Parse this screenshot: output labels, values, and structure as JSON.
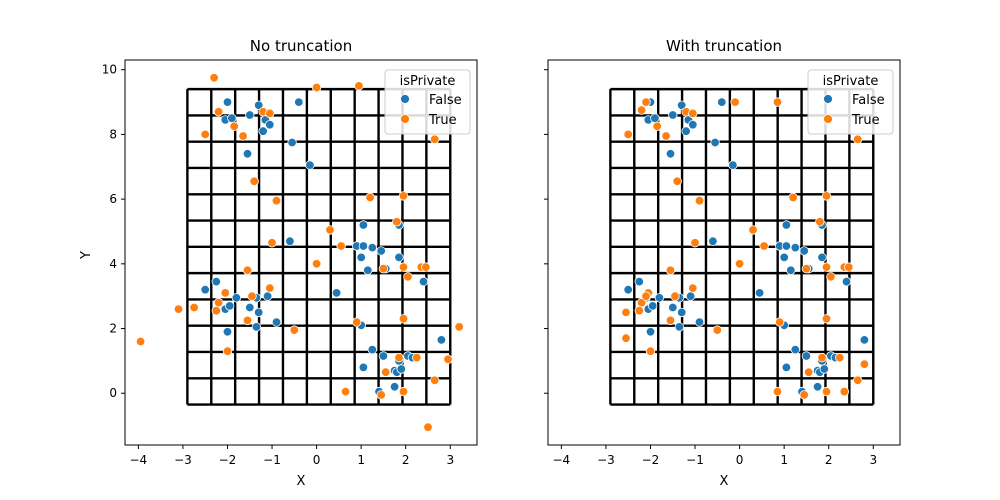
{
  "colors": {
    "false": "#1f77b4",
    "true": "#ff7f0e"
  },
  "chart_data": [
    {
      "type": "scatter",
      "title": "No truncation",
      "xlabel": "X",
      "ylabel": "Y",
      "xlim": [
        -4.3,
        3.6
      ],
      "ylim": [
        -1.6,
        10.3
      ],
      "xticks": [
        -4,
        -3,
        -2,
        -1,
        0,
        1,
        2,
        3
      ],
      "yticks": [
        0,
        2,
        4,
        6,
        8,
        10
      ],
      "show_y_tick_labels": true,
      "legend": {
        "title": "isPrivate",
        "placement": "upper-right",
        "entries": [
          "False",
          "True"
        ]
      },
      "grid_overlay": {
        "x_edges": [
          -2.9,
          3.0
        ],
        "y_edges": [
          -0.35,
          9.4
        ],
        "cols": 11,
        "rows": 12
      },
      "series": [
        {
          "name": "False",
          "points": [
            [
              -2.0,
              9.0
            ],
            [
              -1.3,
              8.9
            ],
            [
              -0.4,
              9.0
            ],
            [
              -2.05,
              8.45
            ],
            [
              -1.9,
              8.5
            ],
            [
              -1.5,
              8.6
            ],
            [
              -1.15,
              8.45
            ],
            [
              -1.05,
              8.3
            ],
            [
              -1.2,
              8.1
            ],
            [
              -0.55,
              7.75
            ],
            [
              -1.55,
              7.4
            ],
            [
              -0.15,
              7.05
            ],
            [
              -0.6,
              4.7
            ],
            [
              1.05,
              5.2
            ],
            [
              1.85,
              5.2
            ],
            [
              0.9,
              4.55
            ],
            [
              1.05,
              4.55
            ],
            [
              1.25,
              4.5
            ],
            [
              1.45,
              4.4
            ],
            [
              1.0,
              4.2
            ],
            [
              1.85,
              4.2
            ],
            [
              1.15,
              3.8
            ],
            [
              1.55,
              3.85
            ],
            [
              2.4,
              3.45
            ],
            [
              0.45,
              3.1
            ],
            [
              -2.25,
              3.45
            ],
            [
              -2.5,
              3.2
            ],
            [
              -1.8,
              2.95
            ],
            [
              -1.1,
              3.0
            ],
            [
              -1.35,
              2.95
            ],
            [
              -2.05,
              2.6
            ],
            [
              -1.95,
              2.7
            ],
            [
              -1.5,
              2.65
            ],
            [
              -1.3,
              2.5
            ],
            [
              -1.35,
              2.05
            ],
            [
              -0.9,
              2.2
            ],
            [
              -2.0,
              1.9
            ],
            [
              1.0,
              2.1
            ],
            [
              2.8,
              1.65
            ],
            [
              1.25,
              1.35
            ],
            [
              1.5,
              1.15
            ],
            [
              1.85,
              1.0
            ],
            [
              2.05,
              1.15
            ],
            [
              2.15,
              1.1
            ],
            [
              1.05,
              0.8
            ],
            [
              1.75,
              0.7
            ],
            [
              1.8,
              0.65
            ],
            [
              1.9,
              0.75
            ],
            [
              1.75,
              0.2
            ],
            [
              1.4,
              0.05
            ]
          ]
        },
        {
          "name": "True",
          "points": [
            [
              -2.3,
              9.75
            ],
            [
              0.0,
              9.45
            ],
            [
              0.95,
              9.5
            ],
            [
              -2.2,
              8.7
            ],
            [
              -1.2,
              8.7
            ],
            [
              -1.05,
              8.65
            ],
            [
              -1.85,
              8.25
            ],
            [
              -1.65,
              7.95
            ],
            [
              -2.5,
              8.0
            ],
            [
              2.65,
              7.85
            ],
            [
              -1.4,
              6.55
            ],
            [
              1.2,
              6.05
            ],
            [
              1.95,
              6.1
            ],
            [
              -0.9,
              5.95
            ],
            [
              1.8,
              5.3
            ],
            [
              0.3,
              5.05
            ],
            [
              0.55,
              4.55
            ],
            [
              -1.0,
              4.65
            ],
            [
              0.0,
              4.0
            ],
            [
              1.95,
              3.9
            ],
            [
              2.35,
              3.9
            ],
            [
              2.45,
              3.9
            ],
            [
              1.5,
              3.85
            ],
            [
              -1.55,
              3.8
            ],
            [
              2.05,
              3.6
            ],
            [
              -1.05,
              3.25
            ],
            [
              -2.05,
              3.1
            ],
            [
              -2.2,
              2.8
            ],
            [
              -1.45,
              3.0
            ],
            [
              -2.25,
              2.55
            ],
            [
              -2.75,
              2.65
            ],
            [
              -3.1,
              2.6
            ],
            [
              -1.55,
              2.25
            ],
            [
              -0.5,
              1.95
            ],
            [
              0.9,
              2.2
            ],
            [
              1.95,
              2.3
            ],
            [
              3.2,
              2.05
            ],
            [
              -3.95,
              1.6
            ],
            [
              -2.0,
              1.3
            ],
            [
              1.85,
              1.1
            ],
            [
              2.25,
              1.1
            ],
            [
              2.95,
              1.05
            ],
            [
              1.55,
              0.65
            ],
            [
              2.65,
              0.4
            ],
            [
              0.65,
              0.05
            ],
            [
              1.45,
              -0.05
            ],
            [
              1.95,
              0.05
            ],
            [
              2.5,
              -1.05
            ]
          ]
        }
      ]
    },
    {
      "type": "scatter",
      "title": "With truncation",
      "xlabel": "X",
      "ylabel": "",
      "xlim": [
        -4.3,
        3.6
      ],
      "ylim": [
        -1.6,
        10.3
      ],
      "xticks": [
        -4,
        -3,
        -2,
        -1,
        0,
        1,
        2,
        3
      ],
      "yticks": [
        0,
        2,
        4,
        6,
        8,
        10
      ],
      "show_y_tick_labels": false,
      "legend": {
        "title": "isPrivate",
        "placement": "upper-right",
        "entries": [
          "False",
          "True"
        ]
      },
      "grid_overlay": {
        "x_edges": [
          -2.9,
          3.0
        ],
        "y_edges": [
          -0.35,
          9.4
        ],
        "cols": 11,
        "rows": 12
      },
      "series": [
        {
          "name": "False",
          "points": [
            [
              -2.0,
              9.0
            ],
            [
              -1.3,
              8.9
            ],
            [
              -0.4,
              9.0
            ],
            [
              -2.05,
              8.45
            ],
            [
              -1.9,
              8.5
            ],
            [
              -1.5,
              8.6
            ],
            [
              -1.15,
              8.45
            ],
            [
              -1.05,
              8.3
            ],
            [
              -1.2,
              8.1
            ],
            [
              -0.55,
              7.75
            ],
            [
              -1.55,
              7.4
            ],
            [
              -0.15,
              7.05
            ],
            [
              -0.6,
              4.7
            ],
            [
              1.05,
              5.2
            ],
            [
              1.85,
              5.2
            ],
            [
              0.9,
              4.55
            ],
            [
              1.05,
              4.55
            ],
            [
              1.25,
              4.5
            ],
            [
              1.45,
              4.4
            ],
            [
              1.0,
              4.2
            ],
            [
              1.85,
              4.2
            ],
            [
              1.15,
              3.8
            ],
            [
              1.55,
              3.85
            ],
            [
              2.4,
              3.45
            ],
            [
              0.45,
              3.1
            ],
            [
              -2.25,
              3.45
            ],
            [
              -2.5,
              3.2
            ],
            [
              -1.8,
              2.95
            ],
            [
              -1.1,
              3.0
            ],
            [
              -1.35,
              2.95
            ],
            [
              -2.05,
              2.6
            ],
            [
              -1.95,
              2.7
            ],
            [
              -1.5,
              2.65
            ],
            [
              -1.3,
              2.5
            ],
            [
              -1.35,
              2.05
            ],
            [
              -0.9,
              2.2
            ],
            [
              -2.0,
              1.9
            ],
            [
              1.0,
              2.1
            ],
            [
              2.8,
              1.65
            ],
            [
              1.25,
              1.35
            ],
            [
              1.5,
              1.15
            ],
            [
              1.85,
              1.0
            ],
            [
              2.05,
              1.15
            ],
            [
              2.15,
              1.1
            ],
            [
              1.05,
              0.8
            ],
            [
              1.75,
              0.7
            ],
            [
              1.8,
              0.65
            ],
            [
              1.9,
              0.75
            ],
            [
              1.75,
              0.2
            ],
            [
              1.4,
              0.05
            ],
            [
              -2.1,
              2.95
            ]
          ]
        },
        {
          "name": "True",
          "points": [
            [
              -2.1,
              9.0
            ],
            [
              -2.2,
              8.75
            ],
            [
              -1.2,
              8.7
            ],
            [
              -1.05,
              8.65
            ],
            [
              -0.1,
              9.0
            ],
            [
              0.85,
              9.0
            ],
            [
              -1.85,
              8.25
            ],
            [
              -1.65,
              7.95
            ],
            [
              -2.5,
              8.0
            ],
            [
              2.65,
              7.85
            ],
            [
              -1.4,
              6.55
            ],
            [
              1.2,
              6.05
            ],
            [
              1.95,
              6.1
            ],
            [
              -0.9,
              5.95
            ],
            [
              1.8,
              5.3
            ],
            [
              0.3,
              5.05
            ],
            [
              0.55,
              4.55
            ],
            [
              -1.0,
              4.65
            ],
            [
              0.0,
              4.0
            ],
            [
              1.95,
              3.9
            ],
            [
              2.35,
              3.9
            ],
            [
              2.45,
              3.9
            ],
            [
              1.5,
              3.85
            ],
            [
              -1.55,
              3.8
            ],
            [
              2.05,
              3.6
            ],
            [
              -1.05,
              3.25
            ],
            [
              -2.05,
              3.1
            ],
            [
              -2.2,
              2.8
            ],
            [
              -1.45,
              3.0
            ],
            [
              -2.25,
              2.55
            ],
            [
              -2.55,
              2.5
            ],
            [
              -2.1,
              3.0
            ],
            [
              -1.55,
              2.25
            ],
            [
              -0.5,
              1.95
            ],
            [
              0.9,
              2.2
            ],
            [
              1.95,
              2.3
            ],
            [
              -2.55,
              1.7
            ],
            [
              -2.0,
              1.3
            ],
            [
              1.85,
              1.1
            ],
            [
              2.25,
              1.1
            ],
            [
              2.8,
              0.9
            ],
            [
              1.55,
              0.65
            ],
            [
              2.65,
              0.4
            ],
            [
              0.85,
              0.05
            ],
            [
              1.45,
              -0.05
            ],
            [
              1.95,
              0.05
            ],
            [
              2.35,
              0.05
            ]
          ]
        }
      ]
    }
  ]
}
